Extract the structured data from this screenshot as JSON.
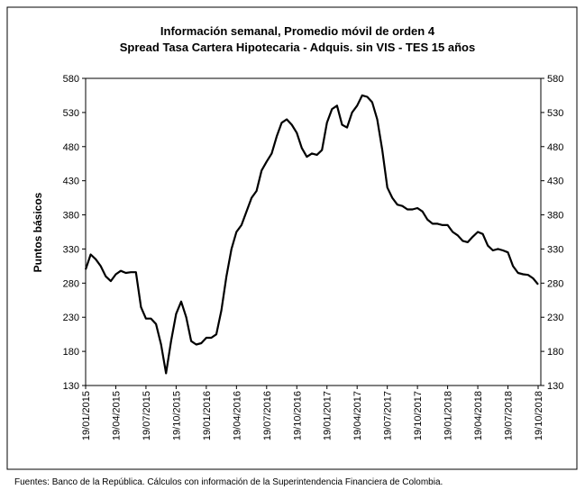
{
  "chart_data": {
    "type": "line",
    "title": "Información semanal, Promedio móvil de orden 4",
    "subtitle": "Spread Tasa Cartera Hipotecaria - Adquis. sin VIS -  TES 15 años",
    "y_label": "Puntos básicos",
    "source": "Fuentes: Banco de la República. Cálculos con información de la Superintendencia Financiera de Colombia.",
    "categories": [
      "19/01/2015",
      null,
      null,
      null,
      null,
      null,
      "19/04/2015",
      null,
      null,
      null,
      null,
      null,
      "19/07/2015",
      null,
      null,
      null,
      null,
      null,
      "19/10/2015",
      null,
      null,
      null,
      null,
      null,
      "19/01/2016",
      null,
      null,
      null,
      null,
      null,
      "19/04/2016",
      null,
      null,
      null,
      null,
      null,
      "19/07/2016",
      null,
      null,
      null,
      null,
      null,
      "19/10/2016",
      null,
      null,
      null,
      null,
      null,
      "19/01/2017",
      null,
      null,
      null,
      null,
      null,
      "19/04/2017",
      null,
      null,
      null,
      null,
      null,
      "19/07/2017",
      null,
      null,
      null,
      null,
      null,
      "19/10/2017",
      null,
      null,
      null,
      null,
      null,
      "19/01/2018",
      null,
      null,
      null,
      null,
      null,
      "19/04/2018",
      null,
      null,
      null,
      null,
      null,
      "19/07/2018",
      null,
      null,
      null,
      null,
      null,
      "19/10/2018"
    ],
    "series": [
      {
        "name": "Spread",
        "color": "#000000",
        "values": [
          300,
          322,
          315,
          305,
          290,
          283,
          293,
          298,
          295,
          296,
          296,
          245,
          228,
          228,
          220,
          190,
          148,
          195,
          235,
          253,
          230,
          195,
          190,
          192,
          200,
          200,
          205,
          240,
          290,
          330,
          355,
          365,
          385,
          405,
          415,
          445,
          458,
          470,
          495,
          515,
          520,
          512,
          500,
          478,
          465,
          470,
          468,
          475,
          515,
          535,
          540,
          512,
          508,
          530,
          540,
          555,
          553,
          545,
          520,
          475,
          420,
          405,
          395,
          393,
          388,
          388,
          390,
          385,
          373,
          367,
          367,
          365,
          365,
          355,
          350,
          342,
          340,
          348,
          355,
          352,
          335,
          328,
          330,
          328,
          325,
          305,
          295,
          293,
          292,
          287,
          278
        ]
      }
    ],
    "ylim": [
      130,
      580
    ],
    "yticks": [
      130,
      180,
      230,
      280,
      330,
      380,
      430,
      480,
      530,
      580
    ],
    "y2lim": [
      130,
      580
    ],
    "y2ticks": [
      130,
      180,
      230,
      280,
      330,
      380,
      430,
      480,
      530,
      580
    ]
  }
}
